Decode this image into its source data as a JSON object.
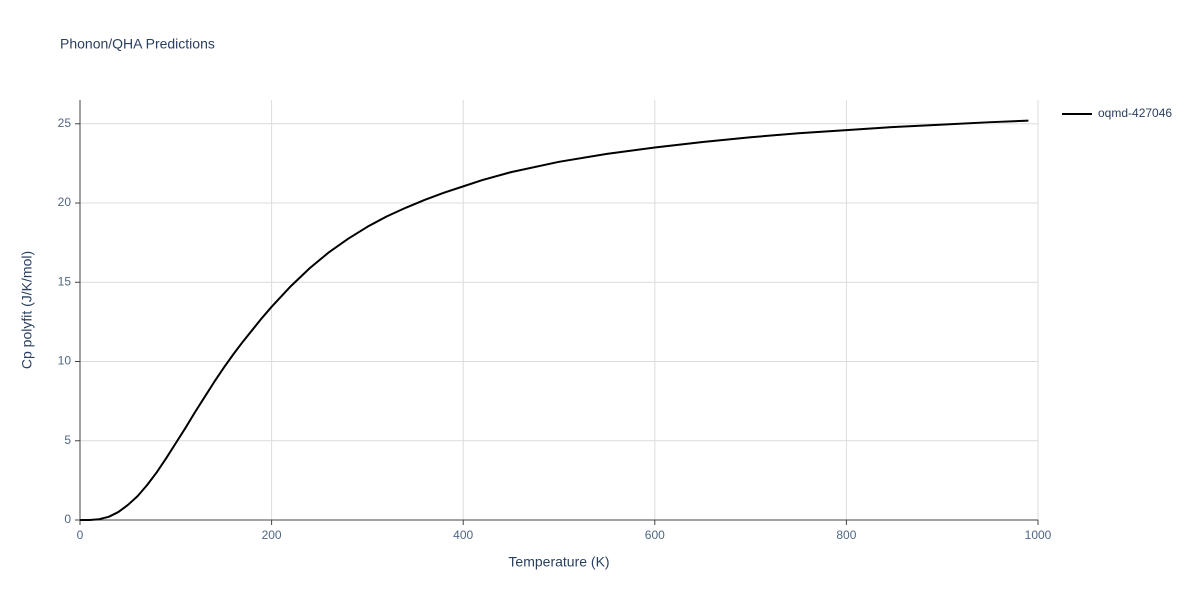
{
  "chart_data": {
    "type": "line",
    "title": "Phonon/QHA Predictions",
    "x_label": "Temperature (K)",
    "y_label": "Cp polyfit (J/K/mol)",
    "x": [
      0,
      10,
      20,
      30,
      40,
      50,
      60,
      70,
      80,
      90,
      100,
      110,
      120,
      130,
      140,
      150,
      160,
      170,
      180,
      190,
      200,
      220,
      240,
      260,
      280,
      300,
      320,
      340,
      360,
      380,
      400,
      420,
      450,
      500,
      550,
      600,
      650,
      700,
      750,
      800,
      850,
      900,
      950,
      990
    ],
    "series": [
      {
        "name": "oqmd-427046",
        "color": "#000000",
        "values": [
          0,
          0,
          0.05,
          0.2,
          0.5,
          0.95,
          1.5,
          2.2,
          3.0,
          3.9,
          4.85,
          5.8,
          6.8,
          7.75,
          8.7,
          9.6,
          10.45,
          11.25,
          12.0,
          12.75,
          13.45,
          14.75,
          15.9,
          16.9,
          17.75,
          18.5,
          19.15,
          19.7,
          20.2,
          20.65,
          21.05,
          21.45,
          21.95,
          22.6,
          23.1,
          23.5,
          23.85,
          24.15,
          24.4,
          24.6,
          24.8,
          24.95,
          25.1,
          25.2
        ]
      }
    ],
    "xlim": [
      0,
      1000
    ],
    "ylim": [
      0,
      26.5
    ],
    "xticks": [
      0,
      200,
      400,
      600,
      800,
      1000
    ],
    "yticks": [
      0,
      5,
      10,
      15,
      20,
      25
    ],
    "grid": true,
    "legend": "right"
  }
}
